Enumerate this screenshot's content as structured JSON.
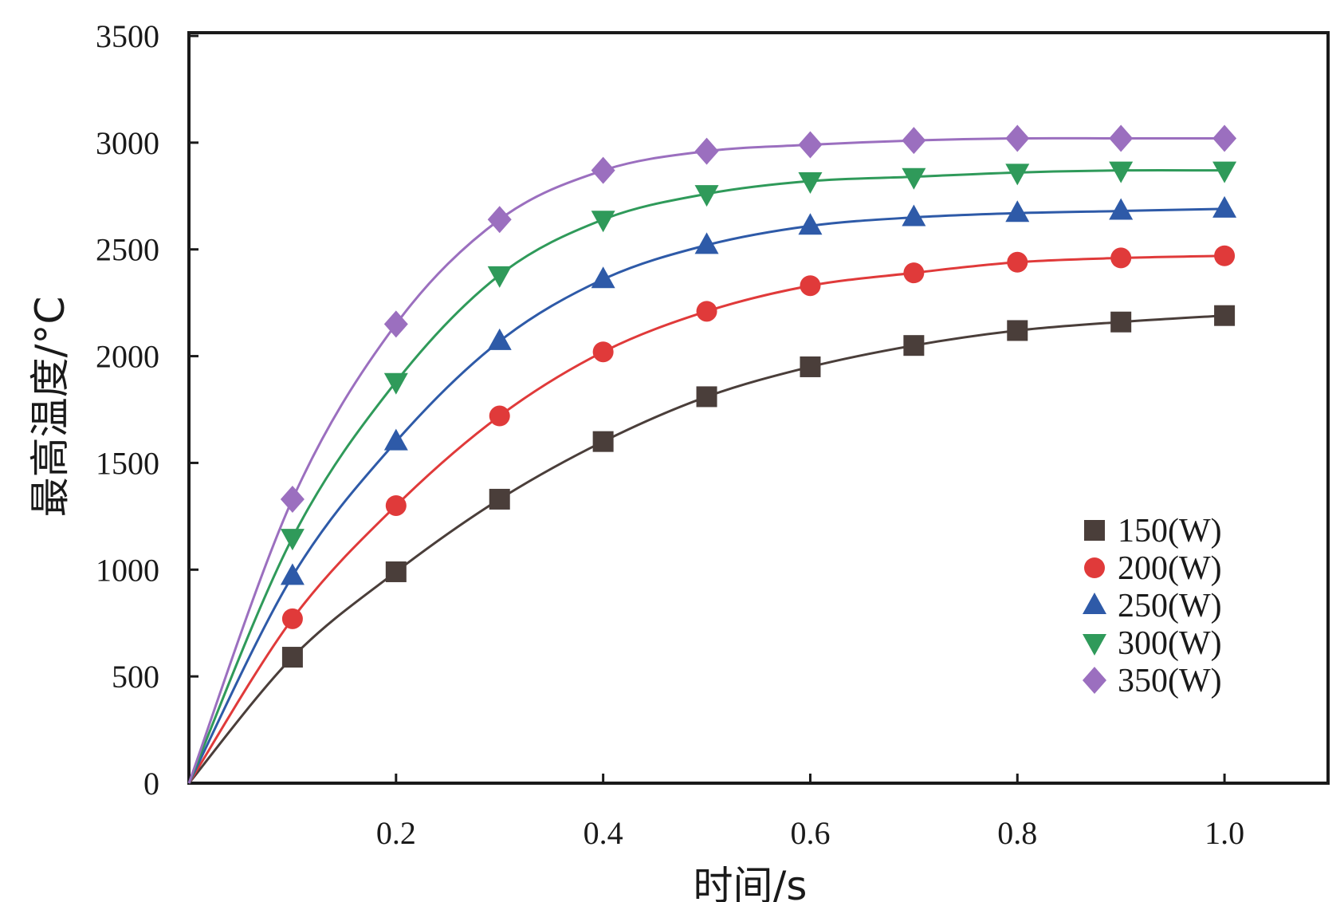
{
  "chart_data": {
    "type": "line",
    "title": "",
    "xlabel": "时间/s",
    "ylabel": "最高温度/°C",
    "xlim": [
      0,
      1.1
    ],
    "ylim": [
      0,
      3500
    ],
    "x_ticks": [
      0.2,
      0.4,
      0.6,
      0.8,
      1.0
    ],
    "x_tick_labels": [
      "0.2",
      "0.4",
      "0.6",
      "0.8",
      "1.0"
    ],
    "y_ticks": [
      0,
      500,
      1000,
      1500,
      2000,
      2500,
      3000,
      3500
    ],
    "y_tick_labels": [
      "0",
      "500",
      "1000",
      "1500",
      "2000",
      "2500",
      "3000",
      "3500"
    ],
    "grid": false,
    "legend_position": "right",
    "x": [
      0.1,
      0.2,
      0.3,
      0.4,
      0.5,
      0.6,
      0.7,
      0.8,
      0.9,
      1.0
    ],
    "series": [
      {
        "name": "150(W)",
        "color": "#4a3e3a",
        "marker": "square",
        "values": [
          590,
          990,
          1330,
          1600,
          1810,
          1950,
          2050,
          2120,
          2160,
          2190
        ]
      },
      {
        "name": "200(W)",
        "color": "#e03a3a",
        "marker": "circle",
        "values": [
          770,
          1300,
          1720,
          2020,
          2210,
          2330,
          2390,
          2440,
          2460,
          2470
        ]
      },
      {
        "name": "250(W)",
        "color": "#2e5aa8",
        "marker": "triangle-up",
        "values": [
          970,
          1600,
          2070,
          2360,
          2520,
          2610,
          2650,
          2670,
          2680,
          2690
        ]
      },
      {
        "name": "300(W)",
        "color": "#2f9a5a",
        "marker": "triangle-down",
        "values": [
          1150,
          1880,
          2380,
          2640,
          2760,
          2820,
          2840,
          2860,
          2870,
          2870
        ]
      },
      {
        "name": "350(W)",
        "color": "#9b6fbf",
        "marker": "diamond",
        "values": [
          1330,
          2150,
          2640,
          2870,
          2960,
          2990,
          3010,
          3020,
          3020,
          3020
        ]
      }
    ]
  }
}
